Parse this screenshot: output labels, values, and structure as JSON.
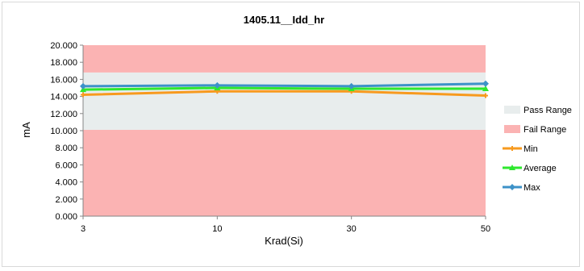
{
  "chart_data": {
    "type": "line",
    "title": "1405.11__Idd_hr",
    "xlabel": "Krad(Si)",
    "ylabel": "mA",
    "categories": [
      "3",
      "10",
      "30",
      "50"
    ],
    "ylim": [
      0,
      20
    ],
    "yticks": [
      "0.000",
      "2.000",
      "4.000",
      "6.000",
      "8.000",
      "10.000",
      "12.000",
      "14.000",
      "16.000",
      "18.000",
      "20.000"
    ],
    "pass_range": [
      10.1,
      16.8
    ],
    "fail_ranges": [
      [
        0,
        10.1
      ],
      [
        16.8,
        20
      ]
    ],
    "series": [
      {
        "name": "Min",
        "values": [
          14.2,
          14.6,
          14.6,
          14.1
        ],
        "color": "#f79a1e"
      },
      {
        "name": "Average",
        "values": [
          14.8,
          15.0,
          14.9,
          14.9
        ],
        "color": "#2ee82e"
      },
      {
        "name": "Max",
        "values": [
          15.2,
          15.3,
          15.2,
          15.5
        ],
        "color": "#3d92c8"
      }
    ],
    "legend": [
      {
        "name": "Pass Range",
        "kind": "band",
        "color": "#e8eded"
      },
      {
        "name": "Fail Range",
        "kind": "band",
        "color": "#fbb3b3"
      },
      {
        "name": "Min",
        "kind": "line",
        "color": "#f79a1e"
      },
      {
        "name": "Average",
        "kind": "line",
        "color": "#2ee82e"
      },
      {
        "name": "Max",
        "kind": "line",
        "color": "#3d92c8"
      }
    ],
    "legend_position": "right",
    "grid": false
  }
}
